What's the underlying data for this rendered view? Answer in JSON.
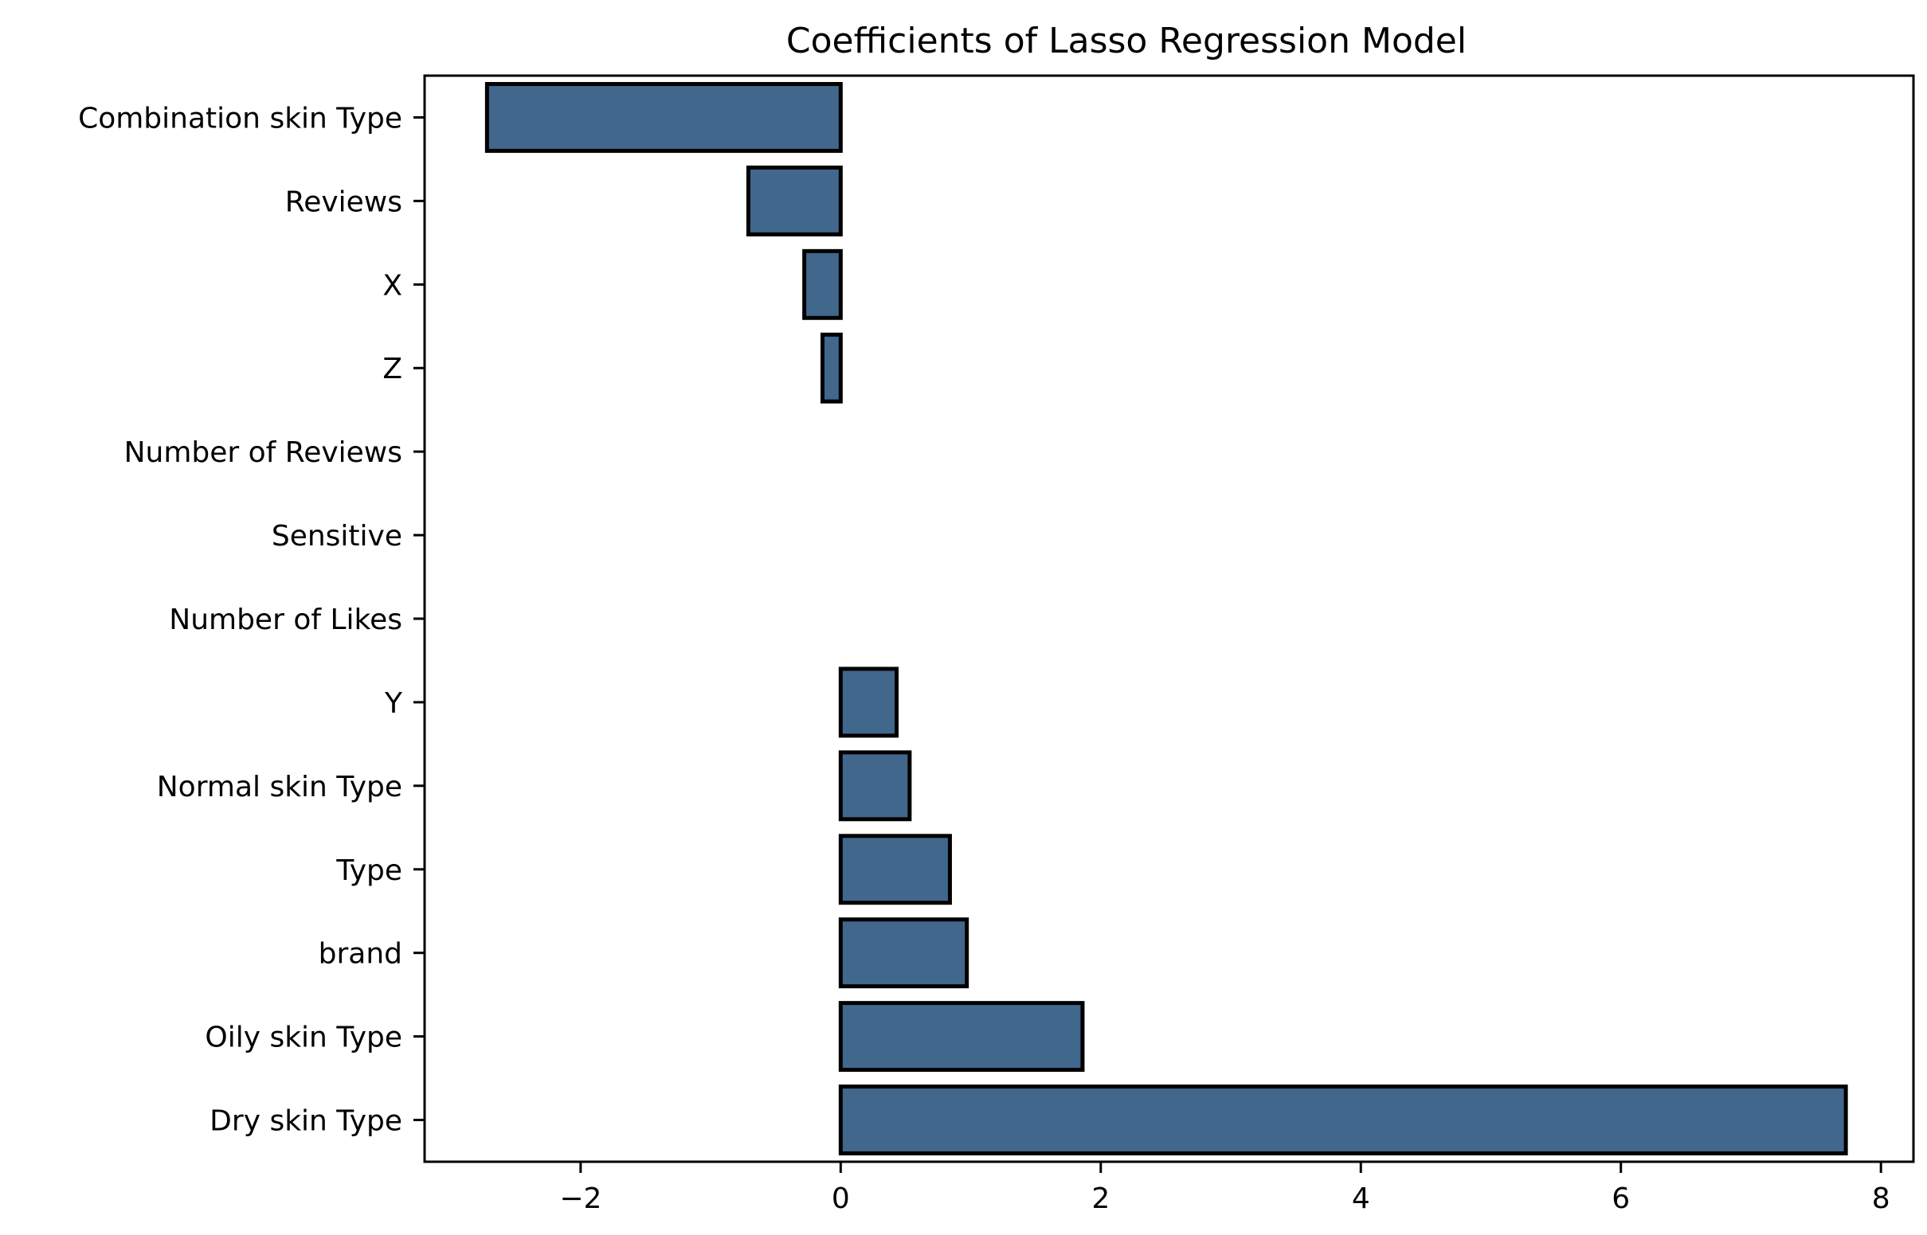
{
  "chart_data": {
    "type": "bar",
    "orientation": "horizontal",
    "title": "Coefficients of Lasso Regression Model",
    "xlabel": "",
    "ylabel": "",
    "categories": [
      "Combination skin Type",
      "Reviews",
      "X",
      "Z",
      "Number of Reviews",
      "Sensitive",
      "Number of Likes",
      "Y",
      "Normal skin Type",
      "Type",
      "brand",
      "Oily skin Type",
      "Dry skin Type"
    ],
    "values": [
      -2.72,
      -0.71,
      -0.28,
      -0.14,
      0.0,
      0.0,
      0.0,
      0.43,
      0.53,
      0.84,
      0.97,
      1.86,
      7.73
    ],
    "xlim": [
      -3.2,
      8.25
    ],
    "xticks": [
      -2,
      0,
      2,
      4,
      6,
      8
    ],
    "xtick_labels": [
      "−2",
      "0",
      "2",
      "4",
      "6",
      "8"
    ],
    "grid": false,
    "legend": "none",
    "colors": {
      "bar_fill": "#41678c",
      "bar_edge": "#000000",
      "axes": "#000000"
    }
  }
}
